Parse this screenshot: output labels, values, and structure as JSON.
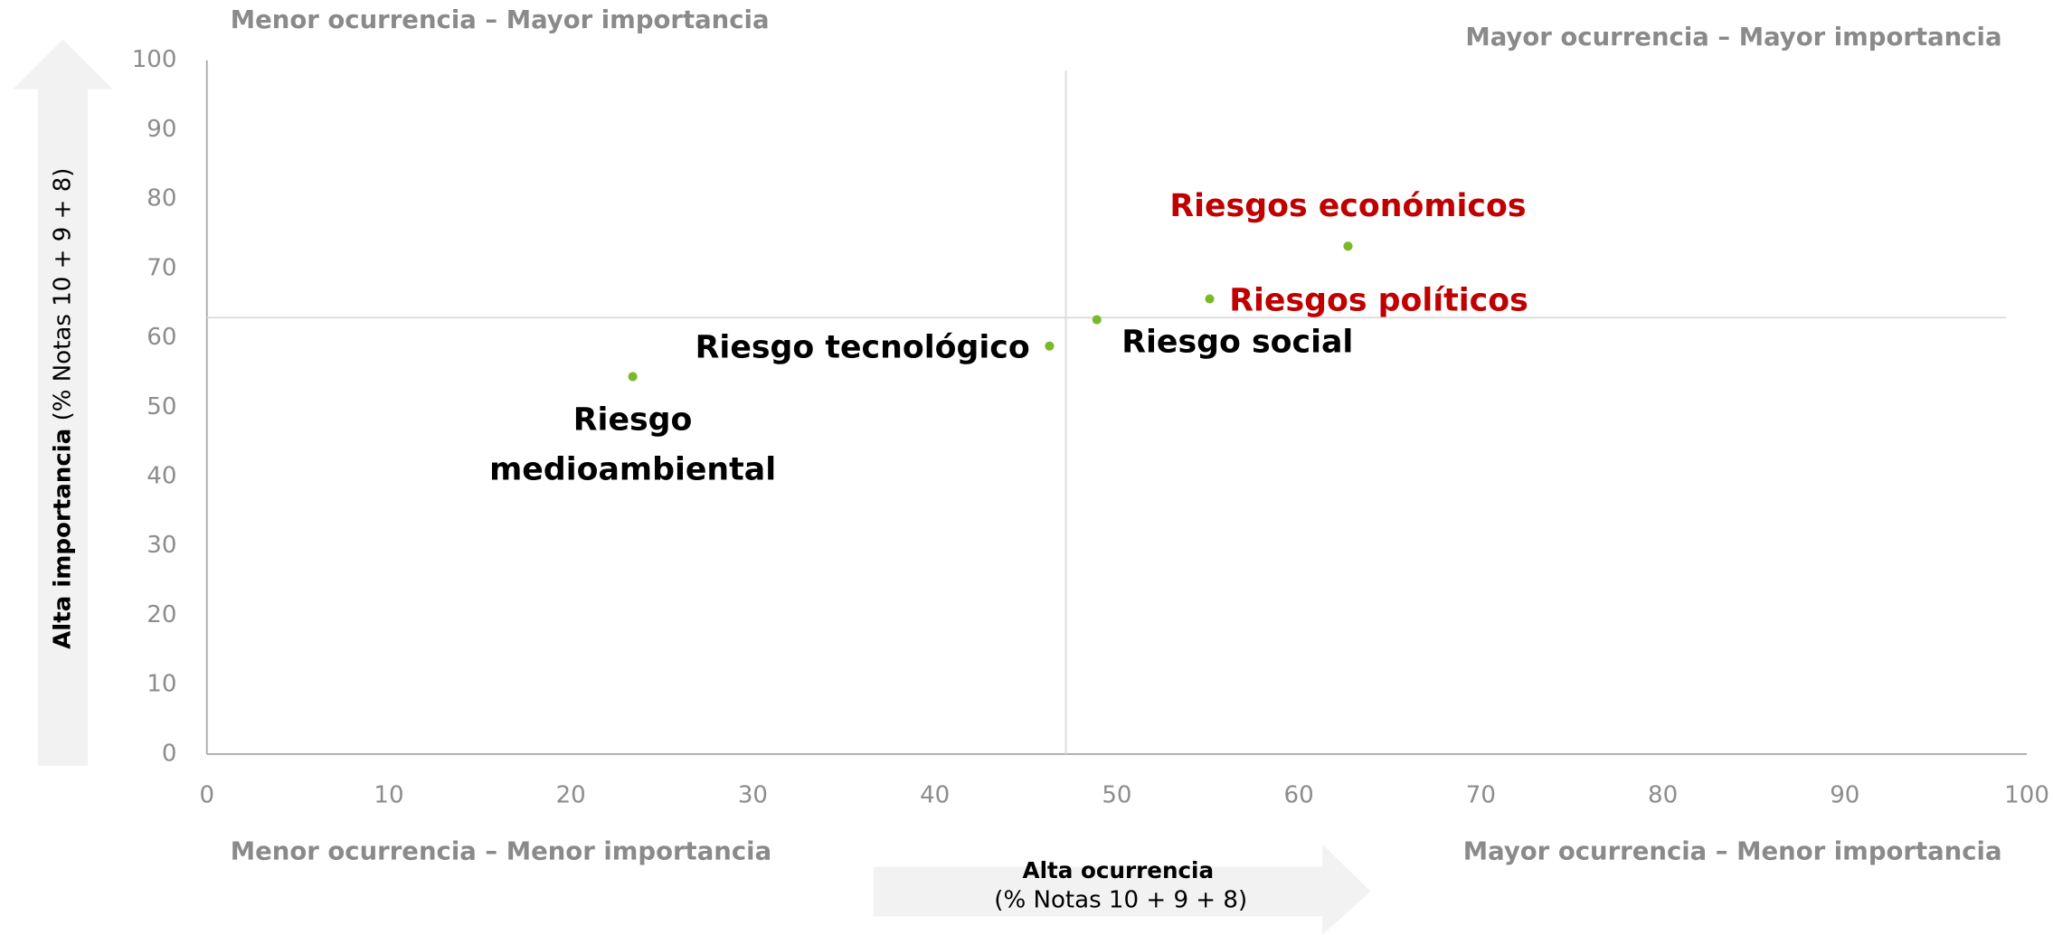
{
  "chart_data": {
    "type": "scatter",
    "quadrant_labels": {
      "top_left": "Menor ocurrencia – Mayor importancia",
      "top_right": "Mayor ocurrencia – Mayor importancia",
      "bottom_left": "Menor ocurrencia – Menor importancia",
      "bottom_right": "Mayor ocurrencia – Menor importancia"
    },
    "xlabel": [
      "Alta ocurrencia",
      "(% Notas 10 + 9 + 8)"
    ],
    "ylabel": [
      "Alta importancia",
      "(% Notas 10 + 9 + 8)"
    ],
    "labels": [
      "Riesgo medioambiental",
      "Riesgo tecnológico",
      "Riesgo social",
      "Riesgos políticos",
      "Riesgos económicos"
    ],
    "label_colors": [
      "#000000",
      "#000000",
      "#000000",
      "#c00000",
      "#c00000"
    ],
    "x": [
      23.4,
      46.3,
      48.9,
      55.1,
      62.7
    ],
    "values": [
      54.4,
      58.8,
      62.6,
      65.6,
      73.2
    ],
    "color": "#7ab929",
    "x_reference": 47.2,
    "y_reference": 62.9,
    "xlim": [
      0,
      100
    ],
    "xticks": [
      0,
      10,
      20,
      30,
      40,
      50,
      60,
      70,
      80,
      90,
      100
    ],
    "ylim": [
      0,
      100
    ],
    "yticks": [
      0,
      10,
      20,
      30,
      40,
      50,
      60,
      70,
      80,
      90,
      100
    ]
  }
}
